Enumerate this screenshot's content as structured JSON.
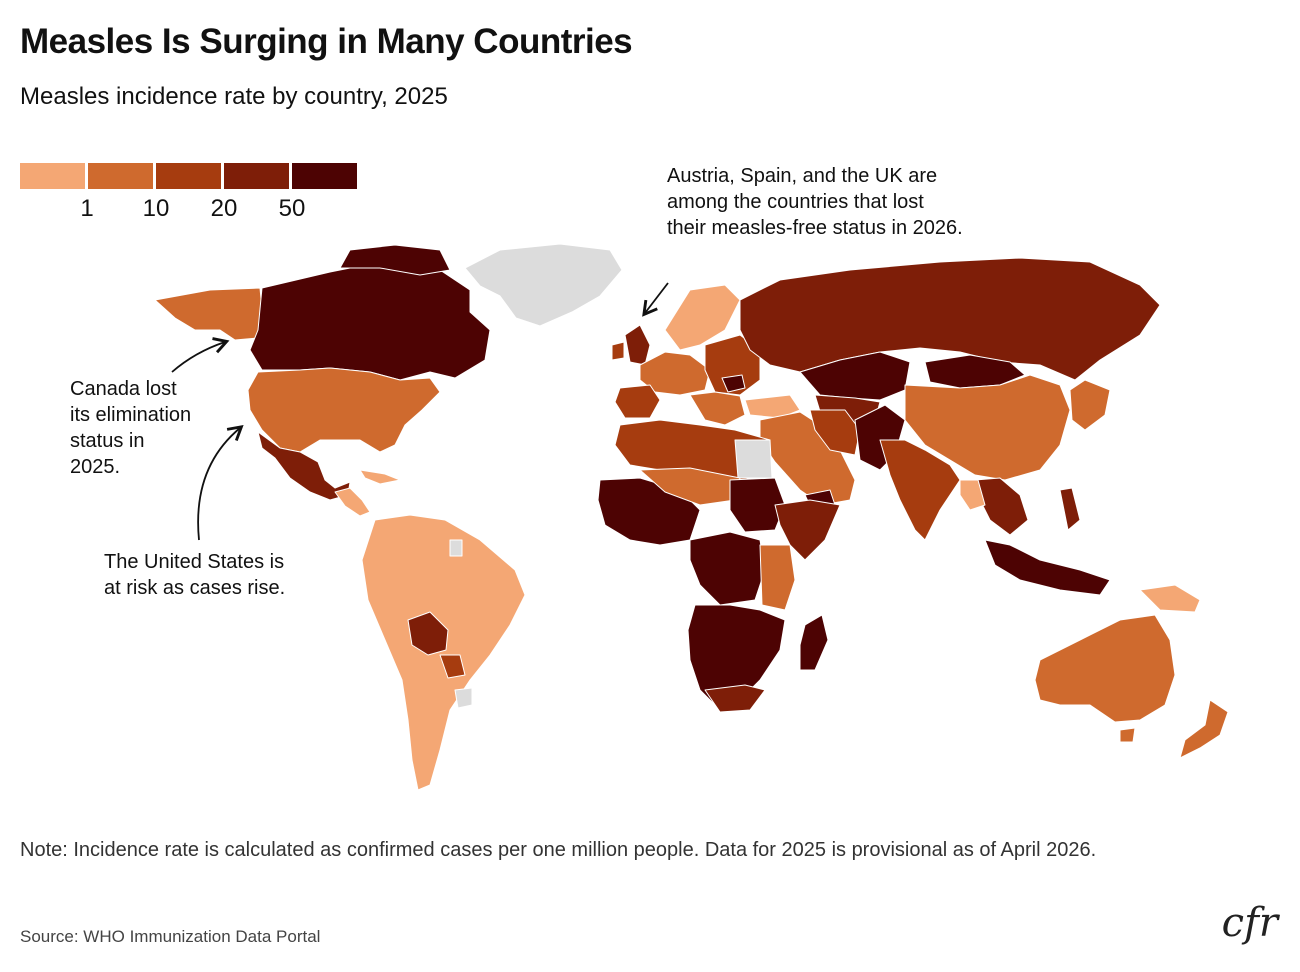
{
  "title": "Measles Is Surging in Many Countries",
  "subtitle": "Measles incidence rate by country, 2025",
  "legend": {
    "colors": [
      "#f4a774",
      "#cf6a2e",
      "#a63c0f",
      "#7e1e08",
      "#4d0303"
    ],
    "ticks": [
      "1",
      "10",
      "20",
      "50"
    ],
    "no_data_color": "#dcdcdc"
  },
  "annotations": {
    "europe": "Austria, Spain, and the UK are among the countries that lost their measles-free status in 2026.",
    "canada_lines": [
      "Canada lost",
      "its elimination",
      "status in",
      "2025."
    ],
    "us_lines": [
      "The United States is",
      "at risk as cases rise."
    ]
  },
  "note": "Note: Incidence rate is calculated as confirmed cases per one million people. Data for 2025 is provisional as of April 2026.",
  "source": "Source: WHO Immunization Data Portal",
  "logo": "cfr"
}
